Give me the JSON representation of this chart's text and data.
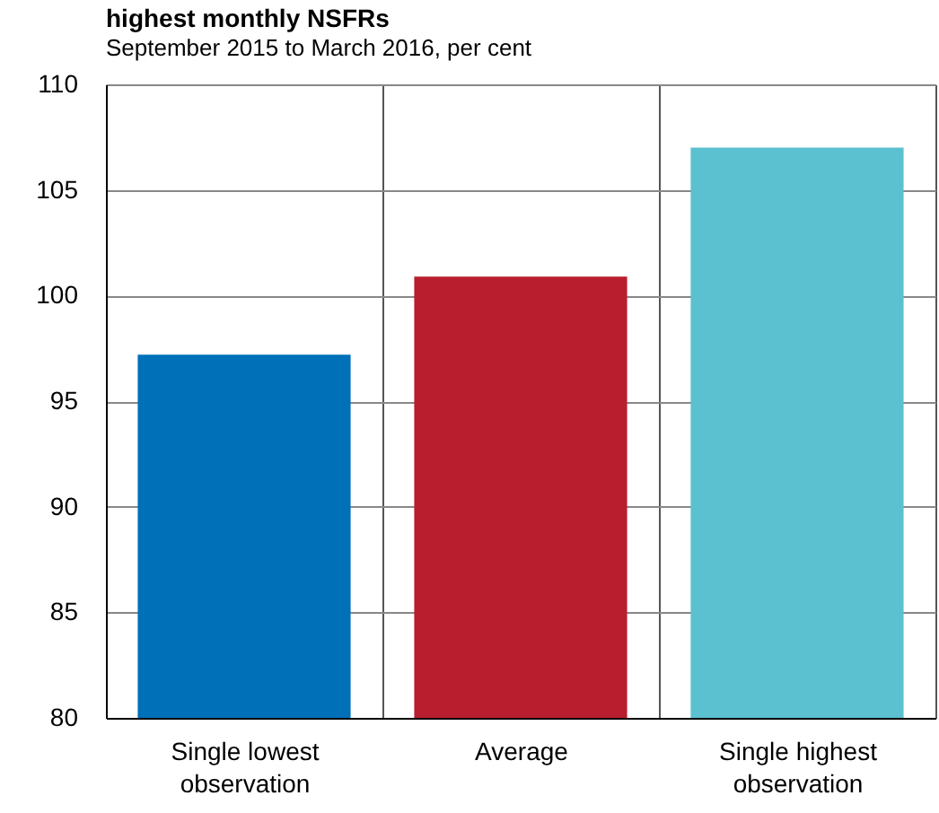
{
  "chart_data": {
    "type": "bar",
    "title": "highest monthly NSFRs",
    "subtitle": "September 2015 to March 2016, per cent",
    "categories": [
      "Single lowest observation",
      "Average",
      "Single highest observation"
    ],
    "values": [
      97.2,
      100.9,
      107.0
    ],
    "colors": [
      "#0070b8",
      "#b81e2d",
      "#5bc0cf"
    ],
    "ylim": [
      80,
      110
    ],
    "yticks": [
      80,
      85,
      90,
      95,
      100,
      105,
      110
    ],
    "grid": true
  }
}
